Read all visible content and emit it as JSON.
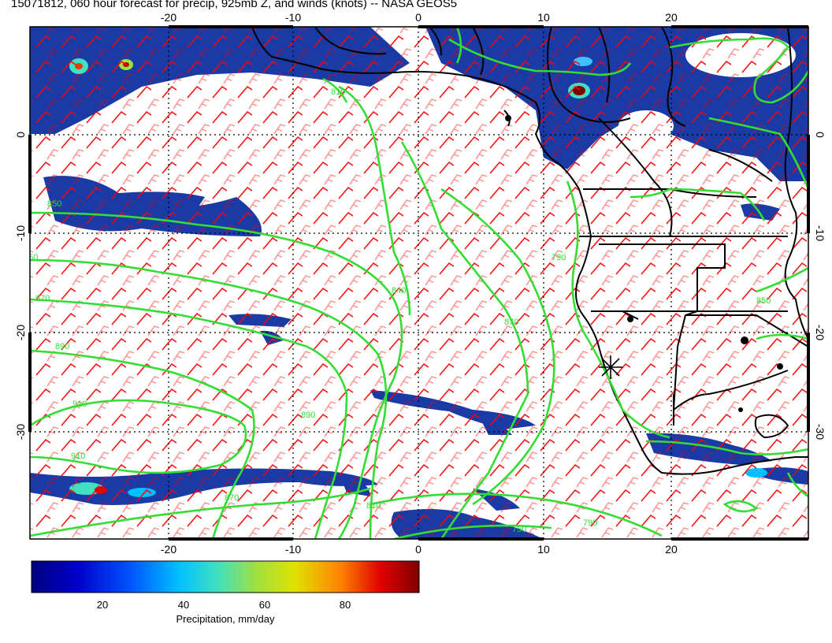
{
  "title": "15071812, 060 hour forecast for precip, 925mb Z, and winds (knots) -- NASA GEOS5",
  "longitude_ticks": [
    "-20",
    "-10",
    "0",
    "10",
    "20"
  ],
  "latitude_ticks": [
    "0",
    "-10",
    "-20",
    "-30"
  ],
  "contour_labels": [
    "850",
    "850",
    "870",
    "890",
    "910",
    "910",
    "810",
    "840",
    "870",
    "890",
    "870",
    "790",
    "810",
    "850",
    "790",
    "750"
  ],
  "colorbar": {
    "label": "Precipitation, mm/day",
    "ticks": [
      "20",
      "40",
      "60",
      "80"
    ],
    "colors": [
      "#000080",
      "#0000cc",
      "#0050ff",
      "#00c0ff",
      "#40e0c0",
      "#a0e040",
      "#e0e000",
      "#ff8000",
      "#e00000",
      "#800000"
    ]
  },
  "colors": {
    "precip": "#1a3aa6",
    "contour": "#33dd33",
    "wind": "#ff0000",
    "coast": "#000000"
  }
}
